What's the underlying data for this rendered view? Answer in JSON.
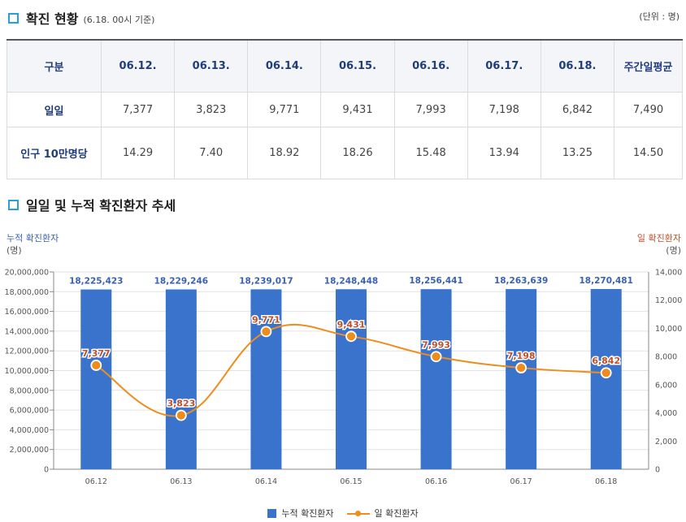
{
  "section1": {
    "title": "확진 현황",
    "subtitle": "(6.18. 00시 기준)",
    "unit": "(단위 : 명)"
  },
  "table": {
    "headers": [
      "구분",
      "06.12.",
      "06.13.",
      "06.14.",
      "06.15.",
      "06.16.",
      "06.17.",
      "06.18.",
      "주간일평균"
    ],
    "rows": [
      {
        "label": "일일",
        "values": [
          "7,377",
          "3,823",
          "9,771",
          "9,431",
          "7,993",
          "7,198",
          "6,842",
          "7,490"
        ]
      },
      {
        "label": "인구 10만명당",
        "values": [
          "14.29",
          "7.40",
          "18.92",
          "18.26",
          "15.48",
          "13.94",
          "13.25",
          "14.50"
        ]
      }
    ]
  },
  "section2": {
    "title": "일일 및 누적 확진환자 추세"
  },
  "axis_titles": {
    "left": "누적 확진환자",
    "left_unit": "(명)",
    "right": "일 확진환자",
    "right_unit": "(명)"
  },
  "colors": {
    "bar": "#3a73cc",
    "line": "#f08c1c",
    "bar_label": "#3a62b3",
    "line_label": "#c0502a",
    "icon": "#2b9fd9"
  },
  "chart_data": {
    "type": "bar+line",
    "categories": [
      "06.12",
      "06.13",
      "06.14",
      "06.15",
      "06.16",
      "06.17",
      "06.18"
    ],
    "series": [
      {
        "name": "누적 확진환자",
        "type": "bar",
        "axis": "left",
        "values": [
          18225423,
          18229246,
          18239017,
          18248448,
          18256441,
          18263639,
          18270481
        ],
        "labels": [
          "18,225,423",
          "18,229,246",
          "18,239,017",
          "18,248,448",
          "18,256,441",
          "18,263,639",
          "18,270,481"
        ]
      },
      {
        "name": "일 확진환자",
        "type": "line",
        "axis": "right",
        "values": [
          7377,
          3823,
          9771,
          9431,
          7993,
          7198,
          6842
        ],
        "labels": [
          "7,377",
          "3,823",
          "9,771",
          "9,431",
          "7,993",
          "7,198",
          "6,842"
        ]
      }
    ],
    "y_left": {
      "min": 0,
      "max": 20000000,
      "step": 2000000,
      "ticks": [
        "0",
        "2,000,000",
        "4,000,000",
        "6,000,000",
        "8,000,000",
        "10,000,000",
        "12,000,000",
        "14,000,000",
        "16,000,000",
        "18,000,000",
        "20,000,000"
      ]
    },
    "y_right": {
      "min": 0,
      "max": 14000,
      "step": 2000,
      "ticks": [
        "0",
        "2,000",
        "4,000",
        "6,000",
        "8,000",
        "10,000",
        "12,000",
        "14,000"
      ]
    },
    "legend": [
      "누적 확진환자",
      "일 확진환자"
    ],
    "legend_position": "bottom"
  }
}
